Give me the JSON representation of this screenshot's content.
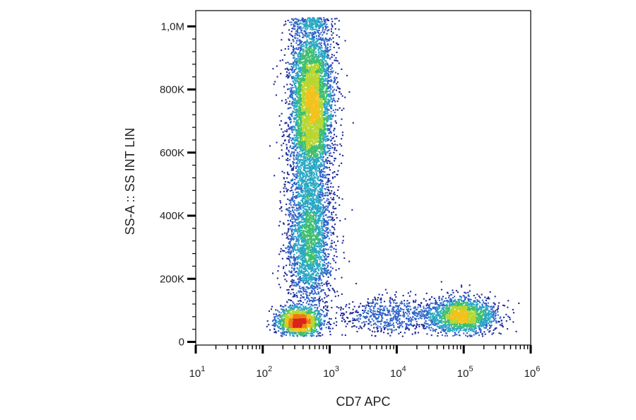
{
  "chart_data": {
    "type": "scatter",
    "style": "density-colored flow cytometry dot plot",
    "xlabel": "CD7 APC",
    "ylabel": "SS-A :: SS INT LIN",
    "x_scale": "log",
    "x_range": [
      10,
      1000000
    ],
    "x_tick_labels": [
      {
        "base": "10",
        "exp": "1",
        "value": 10
      },
      {
        "base": "10",
        "exp": "2",
        "value": 100
      },
      {
        "base": "10",
        "exp": "3",
        "value": 1000
      },
      {
        "base": "10",
        "exp": "4",
        "value": 10000
      },
      {
        "base": "10",
        "exp": "5",
        "value": 100000
      },
      {
        "base": "10",
        "exp": "6",
        "value": 1000000
      }
    ],
    "y_scale": "linear",
    "y_range": [
      -10000,
      1050000
    ],
    "y_ticks": [
      {
        "label": "0",
        "value": 0
      },
      {
        "label": "200K",
        "value": 200000
      },
      {
        "label": "400K",
        "value": 400000
      },
      {
        "label": "600K",
        "value": 600000
      },
      {
        "label": "800K",
        "value": 800000
      },
      {
        "label": "1,0M",
        "value": 1000000
      }
    ],
    "populations": [
      {
        "x_center": 520,
        "y_center": 760000,
        "x_spread_log": 0.16,
        "y_spread": 140000,
        "count": 5200
      },
      {
        "x_center": 480,
        "y_center": 330000,
        "x_spread_log": 0.17,
        "y_spread": 120000,
        "count": 2600
      },
      {
        "x_center": 340,
        "y_center": 65000,
        "x_spread_log": 0.16,
        "y_spread": 22000,
        "count": 1500
      },
      {
        "x_center": 95000,
        "y_center": 85000,
        "x_spread_log": 0.24,
        "y_spread": 28000,
        "count": 1700
      },
      {
        "x_center": 9000,
        "y_center": 85000,
        "x_spread_log": 0.45,
        "y_spread": 30000,
        "count": 700
      }
    ],
    "density_colors": [
      "#1f2a99",
      "#2f63c8",
      "#2aa8c4",
      "#3fbf6e",
      "#b8d630",
      "#f2c31d",
      "#ef7a16",
      "#d9241c"
    ],
    "grid": false,
    "legend": "none"
  }
}
